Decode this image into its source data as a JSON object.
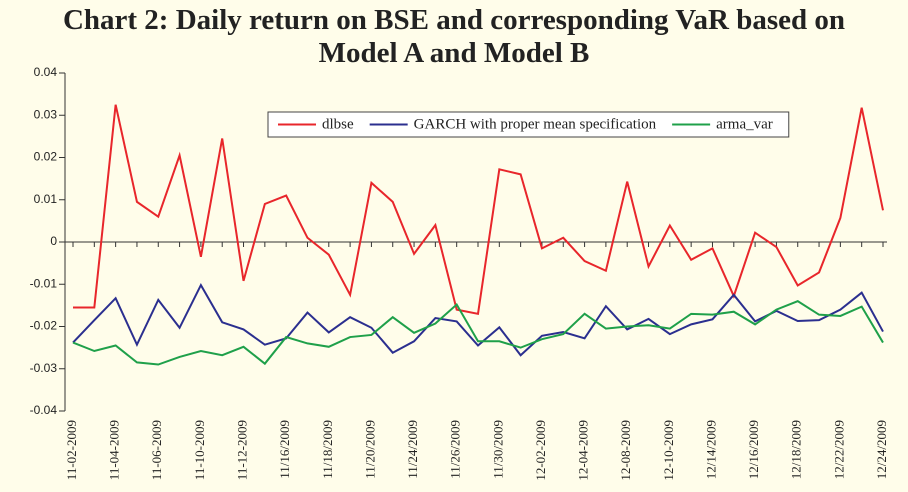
{
  "chart_data": {
    "type": "line",
    "title": "Chart 2: Daily return on BSE and corresponding VaR based on Model A and Model B",
    "categories": [
      "11-02-2009",
      null,
      "11-04-2009",
      null,
      "11-06-2009",
      null,
      "11-10-2009",
      null,
      "11-12-2009",
      null,
      "11/16/2009",
      null,
      "11/18/2009",
      null,
      "11/20/2009",
      null,
      "11/24/2009",
      null,
      "11/26/2009",
      null,
      "11/30/2009",
      null,
      "12-02-2009",
      null,
      "12-04-2009",
      null,
      "12-08-2009",
      null,
      "12-10-2009",
      null,
      "12/14/2009",
      null,
      "12/16/2009",
      null,
      "12/18/2009",
      null,
      "12/22/2009",
      null,
      "12/24/2009"
    ],
    "series": [
      {
        "name": "dlbse",
        "color": "#e8262b",
        "values": [
          -0.0155,
          -0.0155,
          0.0325,
          0.0095,
          0.006,
          0.0205,
          -0.0035,
          0.0245,
          -0.0092,
          0.009,
          0.011,
          0.001,
          -0.003,
          -0.0125,
          0.014,
          0.0095,
          -0.0028,
          0.004,
          -0.016,
          -0.017,
          0.0172,
          0.016,
          -0.0015,
          0.001,
          -0.0045,
          -0.0068,
          0.0143,
          -0.0058,
          0.0039,
          -0.0042,
          -0.0015,
          -0.0128,
          0.0022,
          -0.0012,
          -0.0103,
          -0.0072,
          0.0057,
          0.0318,
          0.0075
        ]
      },
      {
        "name": "GARCH with proper mean specification",
        "color": "#2b2f8f",
        "values": [
          -0.0238,
          -0.0185,
          -0.0133,
          -0.0243,
          -0.0137,
          -0.0203,
          -0.0102,
          -0.019,
          -0.0207,
          -0.0243,
          -0.0228,
          -0.0167,
          -0.0214,
          -0.0178,
          -0.0203,
          -0.0262,
          -0.0235,
          -0.018,
          -0.0188,
          -0.0245,
          -0.0202,
          -0.0268,
          -0.0222,
          -0.0213,
          -0.0228,
          -0.0152,
          -0.0207,
          -0.0182,
          -0.0218,
          -0.0195,
          -0.0183,
          -0.0125,
          -0.0188,
          -0.0163,
          -0.0187,
          -0.0185,
          -0.016,
          -0.012,
          -0.0212
        ]
      },
      {
        "name": "arma_var",
        "color": "#1fa04a",
        "values": [
          -0.0238,
          -0.0258,
          -0.0245,
          -0.0285,
          -0.029,
          -0.0272,
          -0.0258,
          -0.0268,
          -0.0248,
          -0.0288,
          -0.0225,
          -0.024,
          -0.0248,
          -0.0225,
          -0.022,
          -0.0178,
          -0.0215,
          -0.0193,
          -0.0148,
          -0.0235,
          -0.0235,
          -0.025,
          -0.023,
          -0.0218,
          -0.017,
          -0.0205,
          -0.02,
          -0.0197,
          -0.0205,
          -0.017,
          -0.0172,
          -0.0165,
          -0.0195,
          -0.016,
          -0.014,
          -0.0172,
          -0.0175,
          -0.0153,
          -0.0238
        ]
      }
    ],
    "ylim": [
      -0.04,
      0.04
    ],
    "yticks": [
      -0.04,
      -0.03,
      -0.02,
      -0.01,
      0,
      0.01,
      0.02,
      0.03,
      0.04
    ],
    "legend": "top"
  }
}
